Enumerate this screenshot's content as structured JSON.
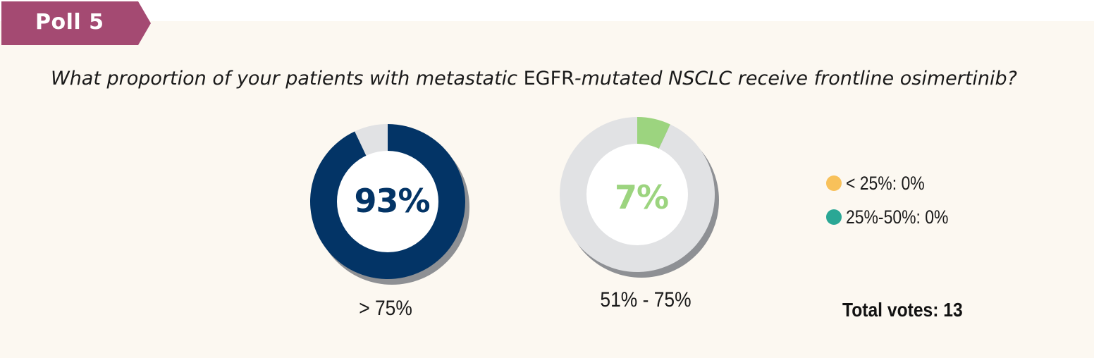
{
  "header": {
    "poll_label": "Poll 5"
  },
  "colors": {
    "tag": "#a44a72",
    "navy": "#033466",
    "green": "#9cd47f",
    "gray": "#e1e2e4",
    "shadow": "#8e9094",
    "legend_orange": "#f8c15a",
    "legend_teal": "#2aa795"
  },
  "question": {
    "part1": "What proportion of your patients with metastatic ",
    "part2": "EGFR",
    "part3": "-mutated NSCLC receive frontline osimertinib?"
  },
  "chart_data": {
    "type": "pie",
    "title": "What proportion of your patients with metastatic EGFR-mutated NSCLC receive frontline osimertinib?",
    "categories": [
      "< 25%",
      "25%-50%",
      "51% - 75%",
      "> 75%"
    ],
    "values": [
      0,
      0,
      7,
      93
    ],
    "units": "%",
    "donuts": [
      {
        "category": "> 75%",
        "percent": 93,
        "label": "93%",
        "color": "#033466"
      },
      {
        "category": "51% - 75%",
        "percent": 7,
        "label": "7%",
        "color": "#9cd47f"
      }
    ],
    "legend": [
      {
        "text": "< 25%: 0%",
        "color": "#f8c15a"
      },
      {
        "text": "25%-50%: 0%",
        "color": "#2aa795"
      }
    ],
    "total_votes": "Total votes: 13"
  }
}
